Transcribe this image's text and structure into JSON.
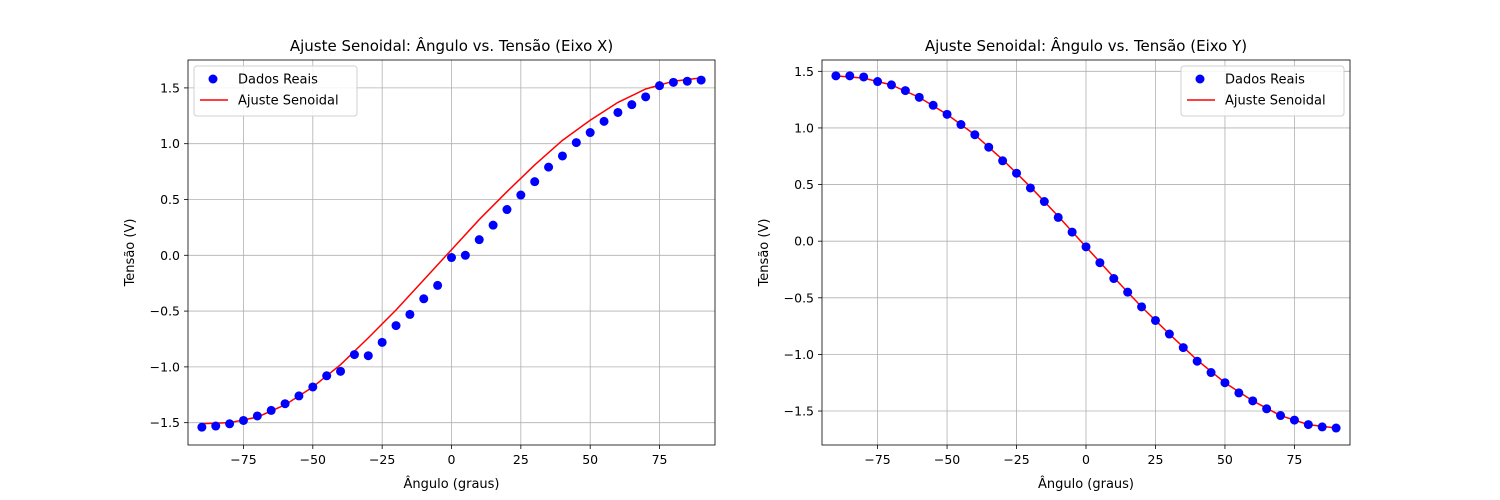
{
  "colors": {
    "points": "#0000ff",
    "fit": "#ff0000",
    "grid": "#b0b0b0",
    "axes": "#000000"
  },
  "chart_data": [
    {
      "type": "scatter",
      "title": "Ajuste Senoidal: Ângulo vs. Tensão (Eixo X)",
      "xlabel": "Ângulo (graus)",
      "ylabel": "Tensão (V)",
      "xlim": [
        -95,
        95
      ],
      "ylim": [
        -1.7,
        1.75
      ],
      "xticks": [
        -75,
        -50,
        -25,
        0,
        25,
        50,
        75
      ],
      "xtick_labels": [
        "−75",
        "−50",
        "−25",
        "0",
        "25",
        "50",
        "75"
      ],
      "yticks": [
        -1.5,
        -1.0,
        -0.5,
        0.0,
        0.5,
        1.0,
        1.5
      ],
      "ytick_labels": [
        "−1.5",
        "−1.0",
        "−0.5",
        "0.0",
        "0.5",
        "1.0",
        "1.5"
      ],
      "grid": true,
      "legend_position": "upper-left",
      "series": [
        {
          "name": "Dados Reais",
          "kind": "scatter",
          "x": [
            -90,
            -85,
            -80,
            -75,
            -70,
            -65,
            -60,
            -55,
            -50,
            -45,
            -40,
            -35,
            -30,
            -25,
            -20,
            -15,
            -10,
            -5,
            0,
            5,
            10,
            15,
            20,
            25,
            30,
            35,
            40,
            45,
            50,
            55,
            60,
            65,
            70,
            75,
            80,
            85,
            90
          ],
          "y": [
            -1.54,
            -1.53,
            -1.51,
            -1.48,
            -1.44,
            -1.39,
            -1.33,
            -1.26,
            -1.18,
            -1.08,
            -1.04,
            -0.89,
            -0.9,
            -0.78,
            -0.63,
            -0.53,
            -0.39,
            -0.27,
            -0.02,
            0.0,
            0.14,
            0.27,
            0.41,
            0.54,
            0.66,
            0.79,
            0.89,
            1.01,
            1.1,
            1.2,
            1.28,
            1.35,
            1.42,
            1.52,
            1.55,
            1.56,
            1.57
          ]
        },
        {
          "name": "Ajuste Senoidal",
          "kind": "line",
          "x": [
            -90,
            -80,
            -70,
            -60,
            -50,
            -40,
            -30,
            -20,
            -10,
            0,
            10,
            20,
            30,
            40,
            50,
            60,
            70,
            80,
            90
          ],
          "y": [
            -1.51,
            -1.5,
            -1.45,
            -1.34,
            -1.18,
            -0.98,
            -0.74,
            -0.49,
            -0.22,
            0.05,
            0.32,
            0.57,
            0.81,
            1.03,
            1.21,
            1.37,
            1.49,
            1.56,
            1.59
          ]
        }
      ]
    },
    {
      "type": "scatter",
      "title": "Ajuste Senoidal: Ângulo vs. Tensão (Eixo Y)",
      "xlabel": "Ângulo (graus)",
      "ylabel": "Tensão (V)",
      "xlim": [
        -95,
        95
      ],
      "ylim": [
        -1.8,
        1.6
      ],
      "xticks": [
        -75,
        -50,
        -25,
        0,
        25,
        50,
        75
      ],
      "xtick_labels": [
        "−75",
        "−50",
        "−25",
        "0",
        "25",
        "50",
        "75"
      ],
      "yticks": [
        -1.5,
        -1.0,
        -0.5,
        0.0,
        0.5,
        1.0,
        1.5
      ],
      "ytick_labels": [
        "−1.5",
        "−1.0",
        "−0.5",
        "0.0",
        "0.5",
        "1.0",
        "1.5"
      ],
      "grid": true,
      "legend_position": "upper-right",
      "series": [
        {
          "name": "Dados Reais",
          "kind": "scatter",
          "x": [
            -90,
            -85,
            -80,
            -75,
            -70,
            -65,
            -60,
            -55,
            -50,
            -45,
            -40,
            -35,
            -30,
            -25,
            -20,
            -15,
            -10,
            -5,
            0,
            5,
            10,
            15,
            20,
            25,
            30,
            35,
            40,
            45,
            50,
            55,
            60,
            65,
            70,
            75,
            80,
            85,
            90
          ],
          "y": [
            1.46,
            1.46,
            1.45,
            1.41,
            1.38,
            1.33,
            1.27,
            1.2,
            1.12,
            1.03,
            0.94,
            0.83,
            0.71,
            0.6,
            0.47,
            0.35,
            0.21,
            0.08,
            -0.05,
            -0.19,
            -0.33,
            -0.45,
            -0.58,
            -0.7,
            -0.82,
            -0.94,
            -1.06,
            -1.16,
            -1.25,
            -1.34,
            -1.41,
            -1.48,
            -1.54,
            -1.58,
            -1.62,
            -1.64,
            -1.65
          ]
        },
        {
          "name": "Ajuste Senoidal",
          "kind": "line",
          "x": [
            -90,
            -80,
            -70,
            -60,
            -50,
            -40,
            -30,
            -20,
            -10,
            0,
            10,
            20,
            30,
            40,
            50,
            60,
            70,
            80,
            90
          ],
          "y": [
            1.46,
            1.44,
            1.38,
            1.27,
            1.12,
            0.94,
            0.72,
            0.48,
            0.22,
            -0.05,
            -0.32,
            -0.58,
            -0.82,
            -1.05,
            -1.25,
            -1.41,
            -1.54,
            -1.62,
            -1.65
          ]
        }
      ]
    }
  ]
}
